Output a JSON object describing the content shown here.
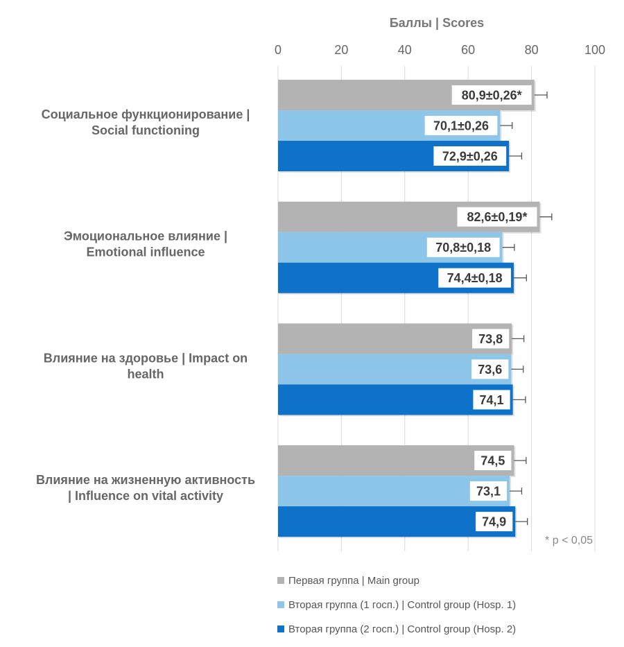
{
  "chart_data": {
    "type": "bar",
    "orientation": "horizontal",
    "title": "Баллы | Scores",
    "xlim": [
      0,
      100
    ],
    "ticks": [
      "0",
      "20",
      "40",
      "60",
      "80",
      "100"
    ],
    "tick_values": [
      0,
      20,
      40,
      60,
      80,
      100
    ],
    "grid": true,
    "note": "* p < 0,05",
    "categories": [
      [
        "Социальное функционирование |",
        "Social functioning"
      ],
      [
        "Эмоциональное влияние |",
        "Emotional influence"
      ],
      [
        "Влияние на здоровье | Impact on",
        "health"
      ],
      [
        "Влияние на жизненную активность",
        "| Influence on vital activity"
      ]
    ],
    "series": [
      {
        "name": "Первая группа | Main group",
        "color": "#b3b3b3",
        "values": [
          80.9,
          82.6,
          73.8,
          74.5
        ],
        "errors": [
          4.0,
          3.8,
          3.8,
          3.8
        ],
        "labels": [
          "80,9±0,26*",
          "82,6±0,19*",
          "73,8",
          "74,5"
        ]
      },
      {
        "name": "Вторая группа (1 госп.) | Control group (Hosp. 1)",
        "color": "#8ec6ea",
        "values": [
          70.1,
          70.8,
          73.6,
          73.1
        ],
        "errors": [
          3.8,
          3.8,
          3.8,
          3.8
        ],
        "labels": [
          "70,1±0,26",
          "70,8±0,18",
          "73,6",
          "73,1"
        ]
      },
      {
        "name": "Вторая группа (2 госп.) | Control group (Hosp. 2)",
        "color": "#0e72c8",
        "values": [
          72.9,
          74.4,
          74.1,
          74.9
        ],
        "errors": [
          4.0,
          4.0,
          4.0,
          3.8
        ],
        "labels": [
          "72,9±0,26",
          "74,4±0,18",
          "74,1",
          "74,9"
        ]
      }
    ]
  }
}
